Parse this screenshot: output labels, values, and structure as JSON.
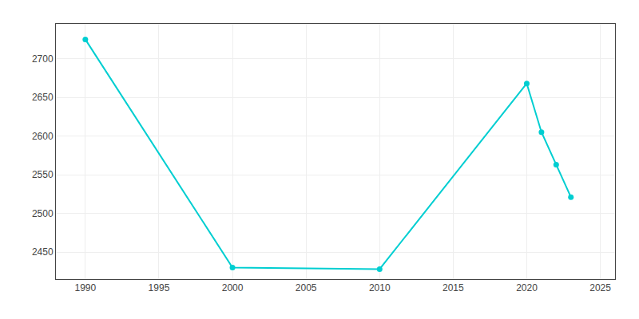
{
  "chart_data": {
    "type": "line",
    "x": [
      1990,
      2000,
      2010,
      2020,
      2021,
      2022,
      2023
    ],
    "values": [
      2725,
      2430,
      2428,
      2668,
      2605,
      2563,
      2521
    ],
    "color": "#00CED1",
    "marker": "circle",
    "xlim": [
      1988,
      2026
    ],
    "ylim": [
      2415,
      2745
    ],
    "xticks": [
      1990,
      1995,
      2000,
      2005,
      2010,
      2015,
      2020,
      2025
    ],
    "yticks": [
      2450,
      2500,
      2550,
      2600,
      2650,
      2700
    ],
    "grid": true
  }
}
